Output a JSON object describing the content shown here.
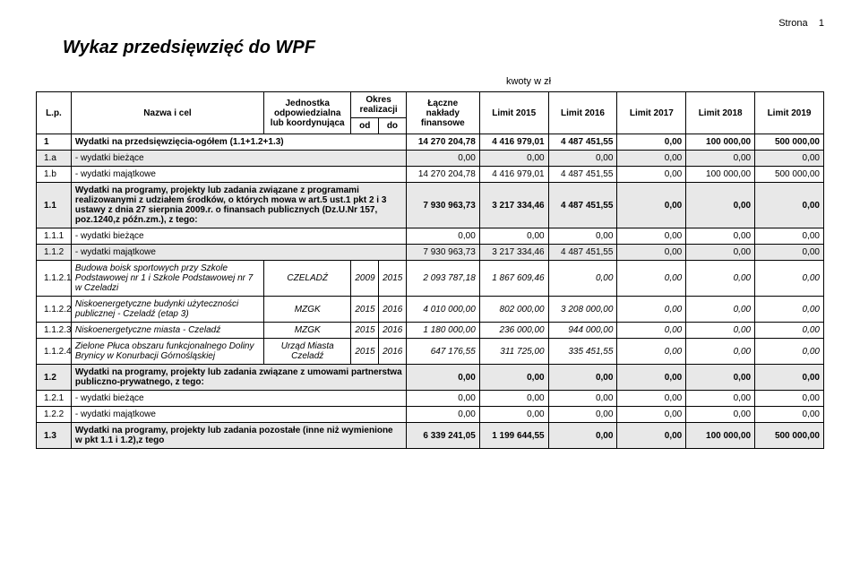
{
  "page_label": "Strona",
  "page_number": "1",
  "title": "Wykaz przedsięwzięć do WPF",
  "kwoty_label": "kwoty w zł",
  "header": {
    "lp": "L.p.",
    "name": "Nazwa i cel",
    "unit": "Jednostka odpowiedzialna lub koordynująca",
    "okres": "Okres realizacji",
    "od": "od",
    "do": "do",
    "naklady": "Łączne nakłady finansowe",
    "l2015": "Limit 2015",
    "l2016": "Limit 2016",
    "l2017": "Limit 2017",
    "l2018": "Limit 2018",
    "l2019": "Limit 2019"
  },
  "rows": [
    {
      "lp": "1",
      "name": "Wydatki na przedsięwzięcia-ogółem (1.1+1.2+1.3)",
      "naklady": "14 270 204,78",
      "l2015": "4 416 979,01",
      "l2016": "4 487 451,55",
      "l2017": "0,00",
      "l2018": "100 000,00",
      "l2019": "500 000,00",
      "shaded": false,
      "bold": true,
      "span": true
    },
    {
      "lp": "1.a",
      "name": "- wydatki bieżące",
      "naklady": "0,00",
      "l2015": "0,00",
      "l2016": "0,00",
      "l2017": "0,00",
      "l2018": "0,00",
      "l2019": "0,00",
      "shaded": true,
      "bold": false,
      "span": true
    },
    {
      "lp": "1.b",
      "name": "- wydatki majątkowe",
      "naklady": "14 270 204,78",
      "l2015": "4 416 979,01",
      "l2016": "4 487 451,55",
      "l2017": "0,00",
      "l2018": "100 000,00",
      "l2019": "500 000,00",
      "shaded": false,
      "bold": false,
      "span": true
    },
    {
      "lp": "1.1",
      "name": "Wydatki na programy, projekty lub zadania związane z programami realizowanymi z udziałem środków, o których mowa w art.5 ust.1 pkt 2 i 3 ustawy z dnia 27 sierpnia 2009.r. o finansach publicznych (Dz.U.Nr 157, poz.1240,z późn.zm.), z tego:",
      "naklady": "7 930 963,73",
      "l2015": "3 217 334,46",
      "l2016": "4 487 451,55",
      "l2017": "0,00",
      "l2018": "0,00",
      "l2019": "0,00",
      "shaded": true,
      "bold": true,
      "span": true
    },
    {
      "lp": "1.1.1",
      "name": "- wydatki bieżące",
      "naklady": "0,00",
      "l2015": "0,00",
      "l2016": "0,00",
      "l2017": "0,00",
      "l2018": "0,00",
      "l2019": "0,00",
      "shaded": false,
      "bold": false,
      "span": true
    },
    {
      "lp": "1.1.2",
      "name": "- wydatki majątkowe",
      "naklady": "7 930 963,73",
      "l2015": "3 217 334,46",
      "l2016": "4 487 451,55",
      "l2017": "0,00",
      "l2018": "0,00",
      "l2019": "0,00",
      "shaded": true,
      "bold": false,
      "span": true
    },
    {
      "lp": "1.1.2.1",
      "name": "Budowa boisk sportowych przy Szkole Podstawowej nr 1 i Szkole Podstawowej nr 7 w Czeladzi",
      "unit": "CZELADŹ",
      "od": "2009",
      "do": "2015",
      "naklady": "2 093 787,18",
      "l2015": "1 867 609,46",
      "l2016": "0,00",
      "l2017": "0,00",
      "l2018": "0,00",
      "l2019": "0,00",
      "shaded": false,
      "bold": false,
      "italic": true,
      "span": false
    },
    {
      "lp": "1.1.2.2",
      "name": "Niskoenergetyczne budynki użyteczności publicznej - Czeladź (etap 3)",
      "unit": "MZGK",
      "od": "2015",
      "do": "2016",
      "naklady": "4 010 000,00",
      "l2015": "802 000,00",
      "l2016": "3 208 000,00",
      "l2017": "0,00",
      "l2018": "0,00",
      "l2019": "0,00",
      "shaded": false,
      "bold": false,
      "italic": true,
      "span": false
    },
    {
      "lp": "1.1.2.3",
      "name": "Niskoenergetyczne miasta - Czeladź",
      "unit": "MZGK",
      "od": "2015",
      "do": "2016",
      "naklady": "1 180 000,00",
      "l2015": "236 000,00",
      "l2016": "944 000,00",
      "l2017": "0,00",
      "l2018": "0,00",
      "l2019": "0,00",
      "shaded": false,
      "bold": false,
      "italic": true,
      "span": false
    },
    {
      "lp": "1.1.2.4",
      "name": "Zielone Płuca obszaru funkcjonalnego Doliny Brynicy w Konurbacji Górnośląskiej",
      "unit": "Urząd Miasta Czeladź",
      "od": "2015",
      "do": "2016",
      "naklady": "647 176,55",
      "l2015": "311 725,00",
      "l2016": "335 451,55",
      "l2017": "0,00",
      "l2018": "0,00",
      "l2019": "0,00",
      "shaded": false,
      "bold": false,
      "italic": true,
      "span": false
    },
    {
      "lp": "1.2",
      "name": "Wydatki na programy, projekty lub zadania związane z umowami partnerstwa publiczno-prywatnego, z tego:",
      "naklady": "0,00",
      "l2015": "0,00",
      "l2016": "0,00",
      "l2017": "0,00",
      "l2018": "0,00",
      "l2019": "0,00",
      "shaded": true,
      "bold": true,
      "span": true
    },
    {
      "lp": "1.2.1",
      "name": "- wydatki bieżące",
      "naklady": "0,00",
      "l2015": "0,00",
      "l2016": "0,00",
      "l2017": "0,00",
      "l2018": "0,00",
      "l2019": "0,00",
      "shaded": false,
      "bold": false,
      "span": true
    },
    {
      "lp": "1.2.2",
      "name": "- wydatki majątkowe",
      "naklady": "0,00",
      "l2015": "0,00",
      "l2016": "0,00",
      "l2017": "0,00",
      "l2018": "0,00",
      "l2019": "0,00",
      "shaded": false,
      "bold": false,
      "span": true
    },
    {
      "lp": "1.3",
      "name": "Wydatki na programy, projekty lub zadania pozostałe (inne niż wymienione w pkt 1.1 i 1.2),z tego",
      "naklady": "6 339 241,05",
      "l2015": "1 199 644,55",
      "l2016": "0,00",
      "l2017": "0,00",
      "l2018": "100 000,00",
      "l2019": "500 000,00",
      "shaded": true,
      "bold": true,
      "span": true
    }
  ]
}
